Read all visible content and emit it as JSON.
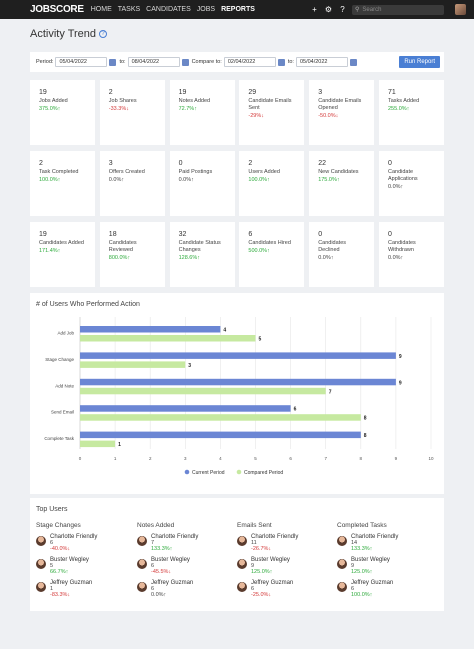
{
  "nav": {
    "logo": "JOBSCORE",
    "links": [
      "HOME",
      "TASKS",
      "CANDIDATES",
      "JOBS",
      "REPORTS"
    ],
    "active": "REPORTS",
    "search_placeholder": "Search"
  },
  "page": {
    "title": "Activity Trend"
  },
  "filters": {
    "period_label": "Period:",
    "period_from": "05/04/2022",
    "to_label": "to:",
    "period_to": "08/04/2022",
    "compare_label": "Compare to:",
    "compare_from": "02/04/2022",
    "compare_to": "05/04/2022",
    "run_label": "Run Report"
  },
  "stats": [
    {
      "value": "19",
      "label": "Jobs Added",
      "change": "375.0%↑",
      "trend": "up"
    },
    {
      "value": "2",
      "label": "Job Shares",
      "change": "-33.3%↓",
      "trend": "down"
    },
    {
      "value": "19",
      "label": "Notes Added",
      "change": "72.7%↑",
      "trend": "up"
    },
    {
      "value": "29",
      "label": "Candidate Emails Sent",
      "change": "-29%↓",
      "trend": "down"
    },
    {
      "value": "3",
      "label": "Candidate Emails Opened",
      "change": "-50.0%↓",
      "trend": "down"
    },
    {
      "value": "71",
      "label": "Tasks Added",
      "change": "255.0%↑",
      "trend": "up"
    },
    {
      "value": "2",
      "label": "Task Completed",
      "change": "100.0%↑",
      "trend": "up"
    },
    {
      "value": "3",
      "label": "Offers Created",
      "change": "0.0%↑",
      "trend": "flat"
    },
    {
      "value": "0",
      "label": "Paid Postings",
      "change": "0.0%↑",
      "trend": "flat"
    },
    {
      "value": "2",
      "label": "Users Added",
      "change": "100.0%↑",
      "trend": "up"
    },
    {
      "value": "22",
      "label": "New Candidates",
      "change": "175.0%↑",
      "trend": "up"
    },
    {
      "value": "0",
      "label": "Candidate Applications",
      "change": "0.0%↑",
      "trend": "flat"
    },
    {
      "value": "19",
      "label": "Candidates Added",
      "change": "171.4%↑",
      "trend": "up"
    },
    {
      "value": "18",
      "label": "Candidates Reviewed",
      "change": "800.0%↑",
      "trend": "up"
    },
    {
      "value": "32",
      "label": "Candidate Status Changes",
      "change": "128.6%↑",
      "trend": "up"
    },
    {
      "value": "6",
      "label": "Candidates Hired",
      "change": "500.0%↑",
      "trend": "up"
    },
    {
      "value": "0",
      "label": "Candidates Declined",
      "change": "0.0%↑",
      "trend": "flat"
    },
    {
      "value": "0",
      "label": "Candidates Withdrawn",
      "change": "0.0%↑",
      "trend": "flat"
    }
  ],
  "chart_title": "# of Users Who Performed Action",
  "chart_data": {
    "type": "bar",
    "orientation": "horizontal",
    "categories": [
      "Add Job",
      "Stage Change",
      "Add Note",
      "Send Email",
      "Complete Task"
    ],
    "series": [
      {
        "name": "Current Period",
        "values": [
          4,
          9,
          9,
          6,
          8
        ],
        "color": "#6b86d4"
      },
      {
        "name": "Compared Period",
        "values": [
          5,
          3,
          7,
          8,
          1
        ],
        "color": "#c6e9a0"
      }
    ],
    "xlim": [
      0,
      10
    ],
    "xticks": [
      "0",
      "1",
      "2",
      "3",
      "4",
      "5",
      "6",
      "7",
      "8",
      "9",
      "10"
    ],
    "grid": true,
    "legend": "bottom"
  },
  "top_users": {
    "title": "Top Users",
    "columns": [
      {
        "title": "Stage Changes",
        "users": [
          {
            "name": "Charlotte Friendly",
            "value": "6",
            "change": "-40.0%↓",
            "trend": "down"
          },
          {
            "name": "Buster Wegley",
            "value": "5",
            "change": "66.7%↑",
            "trend": "up"
          },
          {
            "name": "Jeffrey Guzman",
            "value": "1",
            "change": "-83.3%↓",
            "trend": "down"
          }
        ]
      },
      {
        "title": "Notes Added",
        "users": [
          {
            "name": "Charlotte Friendly",
            "value": "7",
            "change": "133.3%↑",
            "trend": "up"
          },
          {
            "name": "Buster Wegley",
            "value": "6",
            "change": "-45.5%↓",
            "trend": "down"
          },
          {
            "name": "Jeffrey Guzman",
            "value": "6",
            "change": "0.0%↑",
            "trend": "flat"
          }
        ]
      },
      {
        "title": "Emails Sent",
        "users": [
          {
            "name": "Charlotte Friendly",
            "value": "11",
            "change": "-26.7%↓",
            "trend": "down"
          },
          {
            "name": "Buster Wegley",
            "value": "9",
            "change": "125.0%↑",
            "trend": "up"
          },
          {
            "name": "Jeffrey Guzman",
            "value": "6",
            "change": "-25.0%↓",
            "trend": "down"
          }
        ]
      },
      {
        "title": "Completed Tasks",
        "users": [
          {
            "name": "Charlotte Friendly",
            "value": "14",
            "change": "133.3%↑",
            "trend": "up"
          },
          {
            "name": "Buster Wegley",
            "value": "9",
            "change": "125.0%↑",
            "trend": "up"
          },
          {
            "name": "Jeffrey Guzman",
            "value": "6",
            "change": "100.0%↑",
            "trend": "up"
          }
        ]
      }
    ]
  }
}
